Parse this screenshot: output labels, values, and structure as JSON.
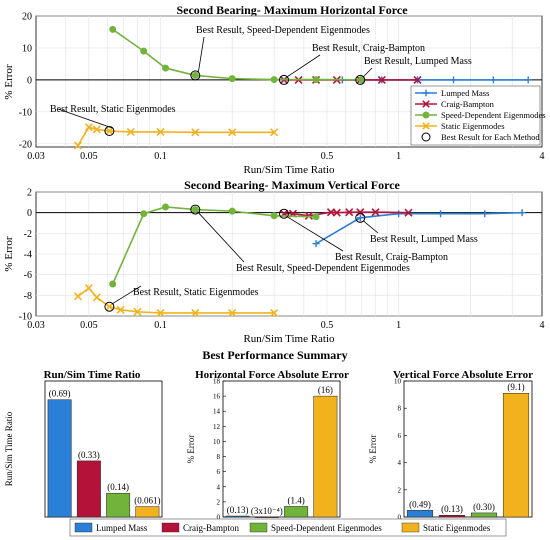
{
  "figure": {
    "summary_title": "Best Performance Summary"
  },
  "colors": {
    "lumped": "#2a7fd6",
    "craig": "#b5123a",
    "speed": "#72b33b",
    "static": "#f2b21e"
  },
  "chart_data": [
    {
      "type": "line",
      "title": "Second Bearing- Maximum Horizontal Force",
      "xlabel": "Run/Sim Time Ratio",
      "ylabel": "% Error",
      "xscale": "log",
      "xlim": [
        0.03,
        4
      ],
      "ylim": [
        -21,
        20
      ],
      "xticks": [
        0.03,
        0.05,
        0.1,
        0.5,
        1,
        4
      ],
      "xtick_labels": [
        "0.03",
        "0.05",
        "0.1",
        "0.5",
        "1",
        "4"
      ],
      "yticks": [
        20,
        10,
        0,
        -10,
        -20
      ],
      "ytick_labels": [
        "20",
        "10",
        "0",
        "-10",
        "-20"
      ],
      "grid": true,
      "legend_position": "right-middle",
      "series": [
        {
          "name": "Lumped Mass",
          "marker": "+",
          "x": [
            0.58,
            0.69,
            0.85,
            1.2,
            1.7,
            2.5,
            3.5
          ],
          "y": [
            0,
            0,
            0,
            0,
            0,
            0,
            0
          ]
        },
        {
          "name": "Craig-Bampton",
          "marker": "x",
          "x": [
            0.33,
            0.38,
            0.45,
            0.55,
            0.69,
            0.85,
            1.2
          ],
          "y": [
            0,
            0,
            0,
            0,
            0,
            0,
            0
          ]
        },
        {
          "name": "Speed-Dependent Eigenmodes",
          "marker": "*",
          "x": [
            0.063,
            0.085,
            0.105,
            0.14,
            0.2,
            0.3,
            0.45,
            0.7
          ],
          "y": [
            15.8,
            9.0,
            3.7,
            1.4,
            0.4,
            0.1,
            0.1,
            0.05
          ]
        },
        {
          "name": "Static Eigenmodes",
          "marker": "x",
          "x": [
            0.045,
            0.05,
            0.054,
            0.061,
            0.075,
            0.1,
            0.14,
            0.2,
            0.3
          ],
          "y": [
            -20.5,
            -14.8,
            -15.5,
            -16.0,
            -16.3,
            -16.3,
            -16.4,
            -16.4,
            -16.4
          ]
        }
      ],
      "best_points": [
        {
          "x": 0.69,
          "y": 0
        },
        {
          "x": 0.33,
          "y": 0
        },
        {
          "x": 0.14,
          "y": 1.4
        },
        {
          "x": 0.061,
          "y": -16.0
        }
      ],
      "legend_extra": "Best Result for Each Method",
      "annotations": [
        {
          "text": "Best Result, Speed-Dependent Eigenmodes",
          "x": 0.14,
          "y": 1.4
        },
        {
          "text": "Best Result, Craig-Bampton",
          "x": 0.33,
          "y": 0
        },
        {
          "text": "Best Result, Lumped Mass",
          "x": 0.69,
          "y": 0
        },
        {
          "text": "Best Result, Static Eigenmodes",
          "x": 0.061,
          "y": -16.0
        }
      ]
    },
    {
      "type": "line",
      "title": "Second Bearing- Maximum Vertical Force",
      "xlabel": "Run/Sim Time Ratio",
      "ylabel": "% Error",
      "xscale": "log",
      "xlim": [
        0.03,
        4
      ],
      "ylim": [
        -10,
        2
      ],
      "xticks": [
        0.03,
        0.05,
        0.1,
        0.5,
        1,
        4
      ],
      "xtick_labels": [
        "0.03",
        "0.05",
        "0.1",
        "0.5",
        "1",
        "4"
      ],
      "yticks": [
        2,
        0,
        -2,
        -4,
        -6,
        -8,
        -10
      ],
      "ytick_labels": [
        "2",
        "0",
        "-2",
        "-4",
        "-6",
        "-8",
        "-10"
      ],
      "grid": true,
      "series": [
        {
          "name": "Lumped Mass",
          "marker": "+",
          "x": [
            0.45,
            0.69,
            1.0,
            1.5,
            2.3,
            3.3
          ],
          "y": [
            -3.0,
            -0.5,
            -0.1,
            -0.1,
            -0.1,
            0.0
          ]
        },
        {
          "name": "Craig-Bampton",
          "marker": "x",
          "x": [
            0.33,
            0.36,
            0.42,
            0.52,
            0.55,
            0.62,
            0.69,
            0.8,
            1.1
          ],
          "y": [
            -0.1,
            -0.1,
            -0.3,
            0.05,
            0.0,
            0.05,
            0.05,
            0.05,
            0.0
          ]
        },
        {
          "name": "Speed-Dependent Eigenmodes",
          "marker": "*",
          "x": [
            0.063,
            0.085,
            0.105,
            0.14,
            0.2,
            0.3,
            0.45
          ],
          "y": [
            -6.9,
            -0.1,
            0.55,
            0.3,
            0.15,
            -0.3,
            -0.4
          ]
        },
        {
          "name": "Static Eigenmodes",
          "marker": "x",
          "x": [
            0.045,
            0.05,
            0.054,
            0.061,
            0.068,
            0.08,
            0.1,
            0.14,
            0.2,
            0.3
          ],
          "y": [
            -8.1,
            -7.3,
            -8.2,
            -9.1,
            -9.4,
            -9.6,
            -9.7,
            -9.7,
            -9.7,
            -9.7
          ]
        }
      ],
      "best_points": [
        {
          "x": 0.69,
          "y": -0.5
        },
        {
          "x": 0.33,
          "y": -0.1
        },
        {
          "x": 0.14,
          "y": 0.3
        },
        {
          "x": 0.061,
          "y": -9.1
        }
      ],
      "annotations": [
        {
          "text": "Best Result, Lumped Mass",
          "x": 0.69,
          "y": -0.5
        },
        {
          "text": "Best Result, Craig-Bampton",
          "x": 0.33,
          "y": -0.1
        },
        {
          "text": "Best Result, Speed-Dependent Eigenmodes",
          "x": 0.14,
          "y": 0.3
        },
        {
          "text": "Best Result, Static Eigenmodes",
          "x": 0.061,
          "y": -9.1
        }
      ]
    },
    {
      "type": "bar",
      "title": "Run/Sim Time Ratio",
      "ylabel": "Run/Sim Time Ratio",
      "categories": [
        "Lumped Mass",
        "Craig-Bampton",
        "Speed-Dependent Eigenmodes",
        "Static Eigenmodes"
      ],
      "values": [
        0.69,
        0.33,
        0.14,
        0.061
      ],
      "data_labels": [
        "(0.69)",
        "(0.33)",
        "(0.14)",
        "(0.061)"
      ],
      "ylim": [
        0,
        0.8
      ],
      "grid": false
    },
    {
      "type": "bar",
      "title": "Horizontal Force Absolute Error",
      "ylabel": "% Error",
      "categories": [
        "Lumped Mass",
        "Craig-Bampton",
        "Speed-Dependent Eigenmodes",
        "Static Eigenmodes"
      ],
      "values": [
        0.13,
        0.0003,
        1.4,
        16
      ],
      "data_labels": [
        "(0.13)",
        "(3x10⁻⁴)",
        "(1.4)",
        "(16)"
      ],
      "ylim": [
        0,
        18
      ],
      "yticks": [
        0,
        2,
        4,
        6,
        8,
        10,
        12,
        14,
        16,
        18
      ],
      "ytick_labels": [
        "0",
        "2",
        "4",
        "6",
        "8",
        "10",
        "12",
        "14",
        "16",
        "18"
      ],
      "grid": false
    },
    {
      "type": "bar",
      "title": "Vertical Force Absolute Error",
      "ylabel": "% Error",
      "categories": [
        "Lumped Mass",
        "Craig-Bampton",
        "Speed-Dependent Eigenmodes",
        "Static Eigenmodes"
      ],
      "values": [
        0.49,
        0.13,
        0.3,
        9.1
      ],
      "data_labels": [
        "(0.49)",
        "(0.13)",
        "(0.30)",
        "(9.1)"
      ],
      "ylim": [
        0,
        10
      ],
      "yticks": [
        0,
        2,
        4,
        6,
        8,
        10
      ],
      "ytick_labels": [
        "0",
        "2",
        "4",
        "6",
        "8",
        "10"
      ],
      "grid": false
    }
  ],
  "bottom_legend": [
    "Lumped Mass",
    "Craig-Bampton",
    "Speed-Dependent Eigenmodes",
    "Static Eigenmodes"
  ]
}
